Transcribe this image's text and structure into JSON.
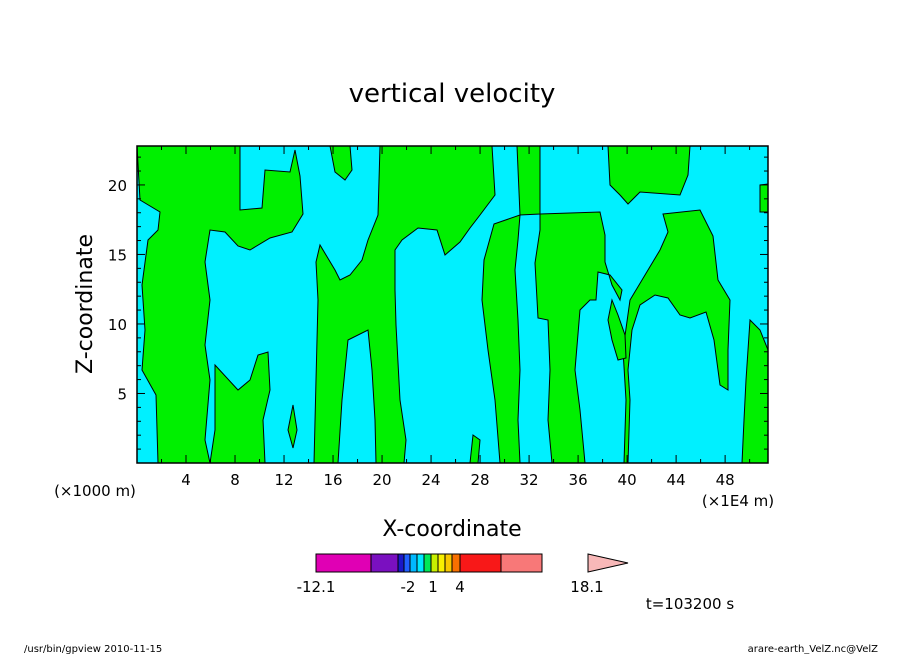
{
  "chart_data": {
    "type": "heatmap",
    "title": "vertical velocity",
    "xlabel": "X-coordinate",
    "ylabel": "Z-coordinate",
    "x_unit_left": "(×1000 m)",
    "x_unit_right": "(×1E4 m)",
    "xlim": [
      0,
      51.5
    ],
    "ylim": [
      0,
      22.8
    ],
    "x_ticks": [
      "4",
      "8",
      "12",
      "16",
      "20",
      "24",
      "28",
      "32",
      "36",
      "40",
      "44",
      "48"
    ],
    "y_ticks": [
      "5",
      "10",
      "15",
      "20"
    ],
    "grid": false,
    "colorbar": {
      "labels": [
        "-12.1",
        "-2",
        "1",
        "4",
        "18.1"
      ],
      "colors": [
        "#e000b4",
        "#7a10c0",
        "#1a18c8",
        "#2060ff",
        "#00b8ff",
        "#00e8ff",
        "#00e858",
        "#c8f000",
        "#f8f000",
        "#f8c800",
        "#f87000",
        "#f81818",
        "#f87878",
        "#f8b8b8"
      ],
      "field_colors": {
        "positive": "#00f000",
        "negative": "#00f0ff"
      }
    },
    "time_label": "t=103200 s",
    "footer_left": "/usr/bin/gpview   2010-11-15",
    "footer_right": "arare-earth_VelZ.nc@VelZ"
  }
}
